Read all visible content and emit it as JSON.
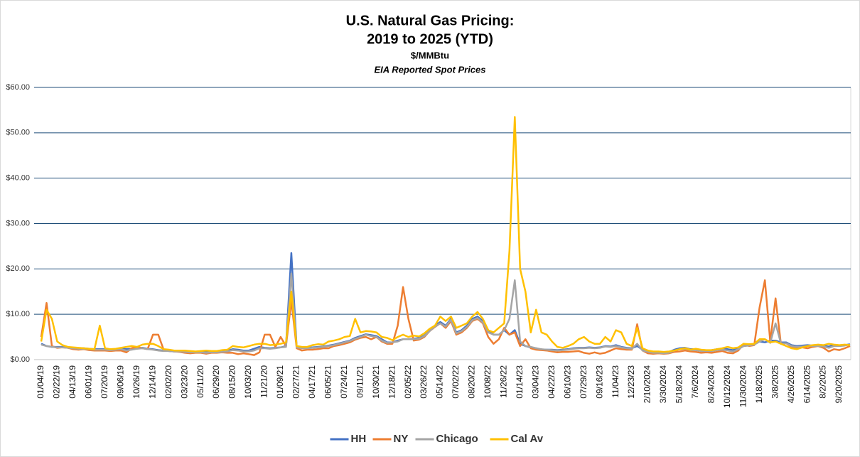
{
  "chart_data": {
    "type": "line",
    "title": [
      "U.S. Natural Gas Pricing:",
      "2019 to 2025 (YTD)"
    ],
    "subtitle": [
      "$/MMBtu",
      "EIA Reported Spot Prices"
    ],
    "categories": [
      "01/04/19",
      null,
      null,
      "02/22/19",
      null,
      null,
      "04/13/19",
      null,
      null,
      "06/01/19",
      null,
      null,
      "07/20/19",
      null,
      null,
      "09/06/19",
      null,
      null,
      "10/26/19",
      null,
      null,
      "12/14/19",
      null,
      null,
      "02/02/20",
      null,
      null,
      "03/23/20",
      null,
      null,
      "05/11/20",
      null,
      null,
      "06/29/20",
      null,
      null,
      "08/15/20",
      null,
      null,
      "10/03/20",
      null,
      null,
      "11/21/20",
      null,
      null,
      "01/09/21",
      null,
      null,
      "02/27/21",
      null,
      null,
      "04/17/21",
      null,
      null,
      "06/05/21",
      null,
      null,
      "07/24/21",
      null,
      null,
      "09/11/21",
      null,
      null,
      "10/30/21",
      null,
      null,
      "12/18/21",
      null,
      null,
      "02/05/22",
      null,
      null,
      "03/26/22",
      null,
      null,
      "05/14/22",
      null,
      null,
      "07/02/22",
      null,
      null,
      "08/20/22",
      null,
      null,
      "10/08/22",
      null,
      null,
      "11/26/22",
      null,
      null,
      "01/14/23",
      null,
      null,
      "03/04/23",
      null,
      null,
      "04/22/23",
      null,
      null,
      "06/10/23",
      null,
      null,
      "07/29/23",
      null,
      null,
      "09/16/23",
      null,
      null,
      "11/04/23",
      null,
      null,
      "12/23/23",
      null,
      null,
      "2/10/2024",
      null,
      null,
      "3/30/2024",
      null,
      null,
      "5/18/2024",
      null,
      null,
      "7/6/2024",
      null,
      null,
      "8/24/2024",
      null,
      null,
      "10/12/2024",
      null,
      null,
      "11/30/2024",
      null,
      null,
      "1/18/2025",
      null,
      null,
      "3/8/2025",
      null,
      null,
      "4/26/2025",
      null,
      null,
      "6/14/2025",
      null,
      null,
      "8/2/2025",
      null,
      null,
      "9/20/2025",
      null,
      null
    ],
    "series": [
      {
        "name": "HH",
        "color": "#4472c4",
        "values": [
          3.5,
          3.0,
          2.8,
          2.8,
          2.8,
          2.7,
          2.6,
          2.5,
          2.5,
          2.4,
          2.3,
          2.3,
          2.3,
          2.2,
          2.3,
          2.5,
          2.3,
          2.4,
          2.5,
          2.6,
          2.4,
          2.3,
          2.1,
          2.0,
          1.9,
          1.8,
          1.8,
          1.7,
          1.7,
          1.6,
          1.7,
          1.6,
          1.7,
          1.7,
          1.8,
          2.0,
          2.3,
          2.2,
          2.0,
          2.0,
          2.4,
          2.8,
          2.6,
          2.5,
          2.6,
          2.7,
          3.0,
          23.5,
          2.8,
          2.6,
          2.6,
          2.7,
          2.8,
          2.9,
          3.1,
          3.3,
          3.6,
          3.9,
          4.2,
          4.8,
          5.2,
          5.6,
          5.4,
          5.2,
          4.5,
          3.8,
          3.8,
          4.2,
          4.5,
          4.5,
          4.6,
          4.8,
          5.3,
          6.5,
          7.5,
          8.3,
          7.5,
          9.0,
          6.0,
          6.5,
          7.5,
          9.0,
          9.5,
          8.5,
          6.5,
          5.5,
          5.5,
          6.5,
          5.5,
          6.5,
          3.5,
          3.0,
          2.7,
          2.5,
          2.2,
          2.2,
          2.2,
          2.1,
          2.2,
          2.3,
          2.5,
          2.6,
          2.6,
          2.7,
          2.6,
          2.7,
          3.0,
          2.9,
          3.2,
          2.8,
          2.6,
          2.5,
          3.0,
          2.2,
          1.8,
          1.6,
          1.6,
          1.6,
          1.7,
          2.2,
          2.5,
          2.6,
          2.3,
          2.3,
          2.1,
          2.0,
          2.1,
          2.3,
          2.4,
          2.3,
          2.1,
          2.5,
          3.0,
          3.2,
          3.4,
          4.0,
          3.8,
          4.2,
          4.2,
          3.8,
          3.8,
          3.2,
          3.0,
          3.1,
          3.2,
          3.1,
          3.2,
          3.0,
          2.9,
          3.2,
          3.1,
          3.2,
          3.4
        ]
      },
      {
        "name": "NY",
        "color": "#ed7d31",
        "values": [
          5.0,
          12.5,
          3.0,
          2.6,
          2.7,
          2.6,
          2.3,
          2.2,
          2.3,
          2.1,
          2.0,
          2.0,
          2.0,
          1.9,
          2.0,
          2.0,
          1.6,
          2.5,
          2.8,
          2.5,
          2.3,
          5.5,
          5.5,
          2.2,
          1.9,
          1.8,
          1.7,
          1.5,
          1.4,
          1.5,
          1.5,
          1.3,
          1.5,
          1.5,
          1.6,
          1.5,
          1.5,
          1.2,
          1.4,
          1.2,
          1.0,
          1.6,
          5.5,
          5.5,
          2.8,
          5.0,
          3.0,
          13.0,
          2.5,
          2.0,
          2.2,
          2.2,
          2.3,
          2.5,
          2.5,
          3.0,
          3.2,
          3.5,
          3.8,
          4.4,
          4.8,
          5.0,
          4.5,
          5.0,
          4.0,
          3.5,
          3.5,
          7.5,
          16.0,
          9.0,
          4.2,
          4.4,
          5.0,
          6.3,
          7.2,
          8.0,
          7.0,
          8.5,
          5.5,
          6.0,
          7.0,
          8.5,
          9.0,
          8.0,
          5.0,
          3.5,
          4.5,
          7.0,
          5.5,
          6.0,
          3.0,
          4.5,
          2.5,
          2.2,
          2.1,
          2.0,
          1.8,
          1.6,
          1.7,
          1.7,
          1.8,
          1.9,
          1.5,
          1.3,
          1.6,
          1.3,
          1.5,
          2.0,
          2.5,
          2.3,
          2.2,
          2.2,
          7.8,
          2.0,
          1.4,
          1.3,
          1.4,
          1.3,
          1.4,
          1.7,
          1.8,
          2.0,
          1.8,
          1.7,
          1.5,
          1.6,
          1.5,
          1.7,
          1.9,
          1.5,
          1.4,
          2.0,
          3.5,
          3.0,
          3.2,
          11.5,
          17.5,
          4.0,
          13.5,
          3.5,
          3.6,
          2.8,
          2.5,
          2.7,
          2.5,
          2.8,
          3.0,
          2.6,
          1.8,
          2.3,
          2.1,
          2.5,
          3.0
        ]
      },
      {
        "name": "Chicago",
        "color": "#a5a5a5",
        "values": [
          3.3,
          3.0,
          2.8,
          2.7,
          2.7,
          2.6,
          2.5,
          2.4,
          2.4,
          2.3,
          2.2,
          2.2,
          2.2,
          2.1,
          2.2,
          2.3,
          2.0,
          2.2,
          2.4,
          2.5,
          2.3,
          2.2,
          2.0,
          1.9,
          1.9,
          1.8,
          1.8,
          1.7,
          1.6,
          1.6,
          1.6,
          1.5,
          1.6,
          1.6,
          1.7,
          1.8,
          2.1,
          2.0,
          1.8,
          1.8,
          2.0,
          2.5,
          2.5,
          2.4,
          2.5,
          2.7,
          2.8,
          19.0,
          2.7,
          2.5,
          2.5,
          2.6,
          2.7,
          2.8,
          3.0,
          3.2,
          3.5,
          3.8,
          4.1,
          4.6,
          5.0,
          5.5,
          5.2,
          5.0,
          4.2,
          3.7,
          3.8,
          4.0,
          4.5,
          4.5,
          4.5,
          4.6,
          5.2,
          6.3,
          7.3,
          8.0,
          7.3,
          8.8,
          5.8,
          6.3,
          7.2,
          8.7,
          9.2,
          8.2,
          6.0,
          5.5,
          5.5,
          6.5,
          9.0,
          17.5,
          4.0,
          3.0,
          2.8,
          2.5,
          2.3,
          2.2,
          2.1,
          2.0,
          2.1,
          2.2,
          2.4,
          2.5,
          2.5,
          2.6,
          2.5,
          2.6,
          2.9,
          2.8,
          3.0,
          2.7,
          2.5,
          2.4,
          3.5,
          2.0,
          1.7,
          1.5,
          1.5,
          1.4,
          1.5,
          2.0,
          2.3,
          2.4,
          2.1,
          2.1,
          1.9,
          1.9,
          1.9,
          2.1,
          2.2,
          2.0,
          1.8,
          2.3,
          3.0,
          3.1,
          3.3,
          4.0,
          4.5,
          3.7,
          8.0,
          3.6,
          3.6,
          3.0,
          2.8,
          2.9,
          3.0,
          3.0,
          3.0,
          2.9,
          2.6,
          3.0,
          3.0,
          3.1,
          3.3
        ]
      },
      {
        "name": "Cal Av",
        "color": "#ffc000",
        "values": [
          4.0,
          11.0,
          9.0,
          4.0,
          3.2,
          2.8,
          2.7,
          2.6,
          2.5,
          2.4,
          2.3,
          7.5,
          2.5,
          2.3,
          2.4,
          2.6,
          2.8,
          3.0,
          2.8,
          3.3,
          3.5,
          3.5,
          3.0,
          2.3,
          2.2,
          2.0,
          2.0,
          2.0,
          1.9,
          1.8,
          1.9,
          2.0,
          1.9,
          1.9,
          2.1,
          2.2,
          3.0,
          2.8,
          2.7,
          3.0,
          3.3,
          3.5,
          3.5,
          3.2,
          3.3,
          3.5,
          3.8,
          15.0,
          3.0,
          2.8,
          2.8,
          3.2,
          3.4,
          3.3,
          4.0,
          4.2,
          4.5,
          5.0,
          5.2,
          9.0,
          6.0,
          6.3,
          6.2,
          6.0,
          5.0,
          4.8,
          4.3,
          5.0,
          5.5,
          5.0,
          5.3,
          5.1,
          5.8,
          6.8,
          7.5,
          9.5,
          8.5,
          9.5,
          7.0,
          7.5,
          8.0,
          9.5,
          10.5,
          9.0,
          6.5,
          6.0,
          7.0,
          8.0,
          24.0,
          53.5,
          20.0,
          15.0,
          6.0,
          11.0,
          6.0,
          5.5,
          4.0,
          2.8,
          2.6,
          3.0,
          3.5,
          4.5,
          5.0,
          4.0,
          3.5,
          3.5,
          5.0,
          4.0,
          6.5,
          6.0,
          3.5,
          3.0,
          7.0,
          2.5,
          2.0,
          1.8,
          1.8,
          1.7,
          1.8,
          2.0,
          2.3,
          2.5,
          2.2,
          2.4,
          2.2,
          2.1,
          2.1,
          2.3,
          2.5,
          2.8,
          2.5,
          2.7,
          3.5,
          3.4,
          3.5,
          4.5,
          4.5,
          3.8,
          4.0,
          3.5,
          3.0,
          2.5,
          2.3,
          2.7,
          3.0,
          3.2,
          3.3,
          3.2,
          3.5,
          3.3,
          3.2,
          3.3,
          3.2
        ]
      }
    ],
    "ylim": [
      0,
      60
    ],
    "yticks": [
      {
        "value": 0,
        "label": "$0.00"
      },
      {
        "value": 10,
        "label": "$10.00"
      },
      {
        "value": 20,
        "label": "$20.00"
      },
      {
        "value": 30,
        "label": "$30.00"
      },
      {
        "value": 40,
        "label": "$40.00"
      },
      {
        "value": 50,
        "label": "$50.00"
      },
      {
        "value": 60,
        "label": "$60.00"
      }
    ],
    "grid": true,
    "legend": "bottom"
  }
}
